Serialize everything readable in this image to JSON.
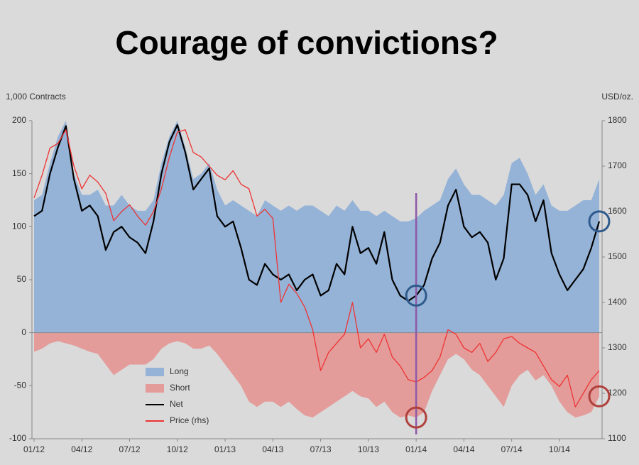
{
  "chart_data": {
    "type": "area",
    "title": "Courage of convictions?",
    "y_label": "1,000 Contracts",
    "y2_label": "USD/oz.",
    "categories": [
      "01/12",
      null,
      null,
      null,
      null,
      null,
      "04/12",
      null,
      null,
      null,
      null,
      null,
      "07/12",
      null,
      null,
      null,
      null,
      null,
      "10/12",
      null,
      null,
      null,
      null,
      null,
      "01/13",
      null,
      null,
      null,
      null,
      null,
      "04/13",
      null,
      null,
      null,
      null,
      null,
      "07/13",
      null,
      null,
      null,
      null,
      null,
      "10/13",
      null,
      null,
      null,
      null,
      null,
      "01/14",
      null,
      null,
      null,
      null,
      null,
      "04/14",
      null,
      null,
      null,
      null,
      null,
      "07/14",
      null,
      null,
      null,
      null,
      null,
      "10/14",
      null,
      null,
      null,
      null,
      null
    ],
    "series": [
      {
        "name": "Long",
        "type": "area",
        "color": "#95b3d7",
        "values": [
          125,
          130,
          160,
          185,
          200,
          150,
          130,
          130,
          135,
          120,
          120,
          130,
          120,
          115,
          115,
          125,
          160,
          185,
          200,
          175,
          145,
          150,
          160,
          135,
          120,
          125,
          120,
          115,
          110,
          125,
          120,
          115,
          120,
          115,
          120,
          120,
          115,
          110,
          120,
          115,
          125,
          115,
          115,
          110,
          115,
          110,
          105,
          105,
          108,
          115,
          120,
          125,
          145,
          155,
          140,
          130,
          130,
          125,
          120,
          130,
          160,
          165,
          150,
          130,
          140,
          120,
          115,
          115,
          120,
          125,
          125,
          145
        ]
      },
      {
        "name": "Short",
        "type": "area",
        "color": "#e39c9a",
        "values": [
          -18,
          -15,
          -10,
          -8,
          -10,
          -12,
          -15,
          -18,
          -20,
          -30,
          -40,
          -35,
          -30,
          -30,
          -30,
          -25,
          -15,
          -10,
          -8,
          -10,
          -15,
          -15,
          -12,
          -20,
          -30,
          -40,
          -50,
          -65,
          -70,
          -65,
          -65,
          -70,
          -65,
          -72,
          -78,
          -80,
          -75,
          -70,
          -65,
          -60,
          -55,
          -60,
          -62,
          -70,
          -65,
          -75,
          -80,
          -78,
          -80,
          -75,
          -55,
          -40,
          -25,
          -20,
          -25,
          -35,
          -40,
          -50,
          -60,
          -70,
          -50,
          -40,
          -35,
          -45,
          -40,
          -50,
          -65,
          -75,
          -80,
          -78,
          -75,
          -60
        ]
      },
      {
        "name": "Net",
        "type": "line",
        "color": "#000000",
        "values": [
          110,
          115,
          150,
          175,
          195,
          145,
          115,
          120,
          110,
          78,
          95,
          100,
          90,
          85,
          75,
          105,
          150,
          180,
          196,
          170,
          135,
          145,
          155,
          110,
          100,
          105,
          80,
          50,
          45,
          65,
          55,
          50,
          55,
          40,
          50,
          55,
          35,
          40,
          65,
          55,
          100,
          75,
          80,
          65,
          95,
          50,
          35,
          30,
          35,
          45,
          70,
          85,
          120,
          135,
          100,
          90,
          95,
          85,
          50,
          70,
          140,
          140,
          130,
          105,
          125,
          75,
          55,
          40,
          50,
          60,
          80,
          105
        ]
      },
      {
        "name": "Price (rhs)",
        "type": "line",
        "color": "#ee3333",
        "axis": "y2",
        "values": [
          1630,
          1680,
          1740,
          1750,
          1780,
          1700,
          1650,
          1680,
          1665,
          1640,
          1580,
          1600,
          1615,
          1590,
          1570,
          1600,
          1650,
          1720,
          1775,
          1780,
          1730,
          1720,
          1700,
          1680,
          1670,
          1690,
          1660,
          1650,
          1590,
          1605,
          1585,
          1400,
          1440,
          1420,
          1390,
          1340,
          1250,
          1290,
          1310,
          1330,
          1400,
          1300,
          1320,
          1290,
          1330,
          1280,
          1260,
          1230,
          1225,
          1235,
          1250,
          1280,
          1340,
          1330,
          1300,
          1290,
          1310,
          1270,
          1290,
          1320,
          1325,
          1310,
          1300,
          1290,
          1260,
          1230,
          1215,
          1240,
          1170,
          1200,
          1230,
          1250
        ]
      }
    ],
    "ylim": [
      -100,
      200
    ],
    "yticks": [
      -100,
      -50,
      0,
      50,
      100,
      150,
      200
    ],
    "y2lim": [
      1100,
      1800
    ],
    "y2ticks": [
      1100,
      1200,
      1300,
      1400,
      1500,
      1600,
      1700,
      1800
    ],
    "grid": false,
    "legend": "bottom-left",
    "marker_line_color": "#8e5aa8",
    "highlight_colors": [
      "#2e5a8c",
      "#b0403c"
    ]
  }
}
